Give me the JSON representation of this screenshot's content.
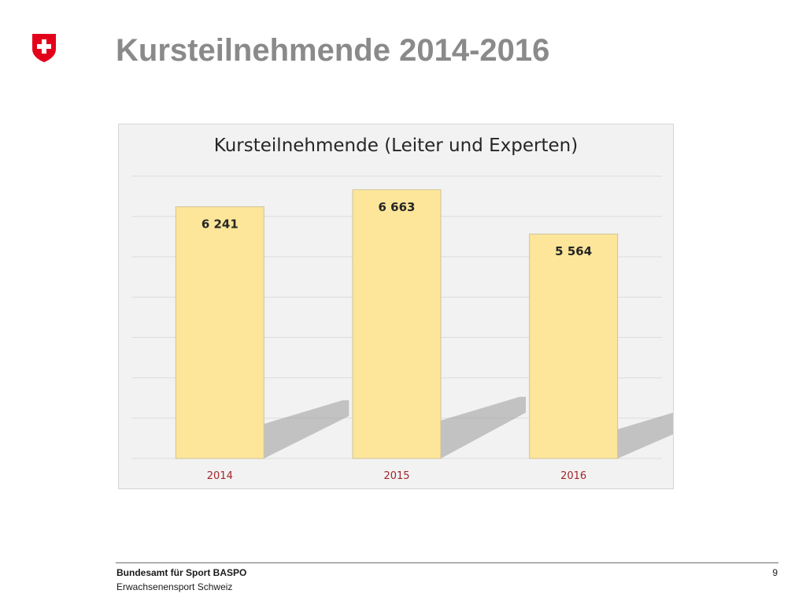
{
  "slide": {
    "title": "Kursteilnehmende 2014-2016",
    "logo": "swiss-cross-shield-icon"
  },
  "footer": {
    "organization": "Bundesamt für Sport BASPO",
    "unit": "Erwachsenensport Schweiz",
    "page_number": "9"
  },
  "chart_data": {
    "type": "bar",
    "title": "Kursteilnehmende (Leiter und Experten)",
    "categories": [
      "2014",
      "2015",
      "2016"
    ],
    "values": [
      6241,
      6663,
      5564
    ],
    "value_labels": [
      "6 241",
      "6 663",
      "5 564"
    ],
    "xlabel": "",
    "ylabel": "",
    "ylim": [
      0,
      7500
    ],
    "grid": true,
    "legend": "none",
    "colors": {
      "bar_fill": "#fde699",
      "bar_stroke": "#cfc39a",
      "tick_label": "#a3262a",
      "value_label": "#262626",
      "gridline": "#dcdcdc",
      "shadow": "#9a9a9a"
    }
  }
}
